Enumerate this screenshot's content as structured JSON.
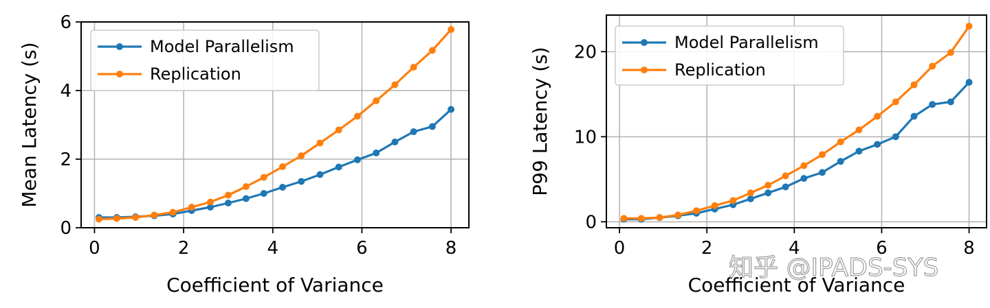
{
  "watermark": "知乎 @IPADS-SYS",
  "colors": {
    "model_parallelism": "#1f77b4",
    "replication": "#ff7f0e",
    "grid": "#b0b0b0"
  },
  "chart_data": [
    {
      "type": "line",
      "xlabel": "Coefficient of Variance",
      "ylabel": "Mean Latency (s)",
      "xlim": [
        -0.3,
        8.4
      ],
      "ylim": [
        0,
        6
      ],
      "xticks": [
        0,
        2,
        4,
        6,
        8
      ],
      "yticks": [
        0,
        2,
        4,
        6
      ],
      "legend_position": "top-left",
      "x": [
        0.1,
        0.5,
        0.92,
        1.34,
        1.76,
        2.18,
        2.6,
        3.0,
        3.4,
        3.8,
        4.22,
        4.64,
        5.06,
        5.48,
        5.9,
        6.32,
        6.74,
        7.16,
        7.58,
        8.0
      ],
      "series": [
        {
          "name": "Model Parallelism",
          "color_key": "model_parallelism",
          "values": [
            0.3,
            0.3,
            0.32,
            0.35,
            0.4,
            0.5,
            0.6,
            0.72,
            0.85,
            1.0,
            1.18,
            1.35,
            1.55,
            1.77,
            1.98,
            2.18,
            2.5,
            2.8,
            2.95,
            3.45
          ]
        },
        {
          "name": "Replication",
          "color_key": "replication",
          "values": [
            0.25,
            0.27,
            0.3,
            0.37,
            0.45,
            0.6,
            0.75,
            0.95,
            1.2,
            1.47,
            1.78,
            2.1,
            2.47,
            2.85,
            3.25,
            3.7,
            4.17,
            4.68,
            5.17,
            5.78
          ]
        }
      ]
    },
    {
      "type": "line",
      "xlabel": "Coefficient of Variance",
      "ylabel": "P99 Latency (s)",
      "xlim": [
        -0.3,
        8.4
      ],
      "ylim": [
        -0.7,
        24.3
      ],
      "xticks": [
        0,
        2,
        4,
        6,
        8
      ],
      "yticks": [
        0,
        10,
        20
      ],
      "legend_position": "top-left",
      "x": [
        0.1,
        0.5,
        0.92,
        1.34,
        1.76,
        2.18,
        2.6,
        3.0,
        3.4,
        3.8,
        4.22,
        4.64,
        5.06,
        5.48,
        5.9,
        6.32,
        6.74,
        7.16,
        7.58,
        8.0
      ],
      "series": [
        {
          "name": "Model Parallelism",
          "color_key": "model_parallelism",
          "values": [
            0.3,
            0.3,
            0.5,
            0.7,
            1.0,
            1.5,
            2.0,
            2.7,
            3.4,
            4.1,
            5.1,
            5.8,
            7.1,
            8.3,
            9.1,
            10.0,
            12.4,
            13.8,
            14.1,
            16.4
          ]
        },
        {
          "name": "Replication",
          "color_key": "replication",
          "values": [
            0.4,
            0.4,
            0.5,
            0.8,
            1.3,
            1.9,
            2.5,
            3.4,
            4.3,
            5.4,
            6.6,
            7.9,
            9.4,
            10.8,
            12.4,
            14.1,
            16.1,
            18.3,
            19.9,
            23.0
          ]
        }
      ]
    }
  ]
}
